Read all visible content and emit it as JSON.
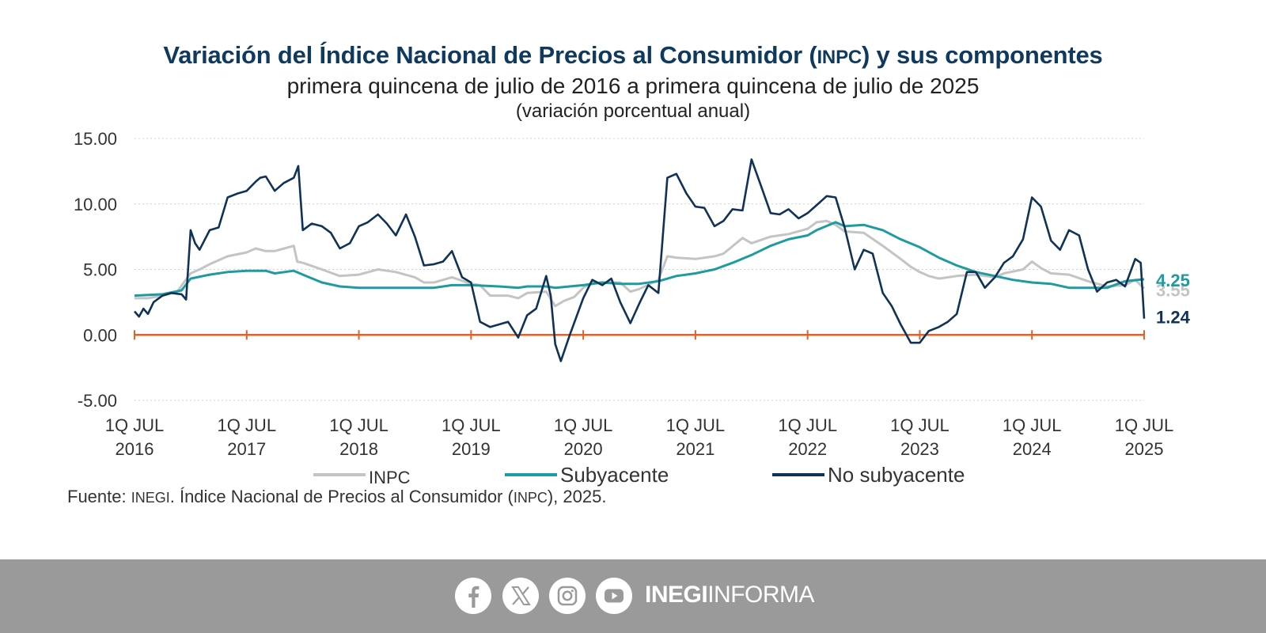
{
  "header": {
    "title_pre": "Variación del Índice Nacional de Precios al Consumidor (",
    "title_abbr": "INPC",
    "title_post": ") y sus componentes",
    "subtitle": "primera quincena de julio de 2016 a primera quincena de julio de 2025",
    "units": "(variación porcentual anual)"
  },
  "source": {
    "pre": "Fuente: ",
    "org": "INEGI",
    "mid": ". Índice Nacional de Precios al Consumidor (",
    "abbr": "INPC",
    "post": "), 2025."
  },
  "footer": {
    "icons": [
      "facebook-icon",
      "x-icon",
      "instagram-icon",
      "youtube-icon"
    ],
    "brand_bold": "INEGI",
    "brand_light": "INFORMA",
    "background": "#9a9a9a"
  },
  "chart_data": {
    "type": "line",
    "ylim": [
      -5,
      15
    ],
    "yticks": [
      "15.00",
      "10.00",
      "5.00",
      "0.00",
      "-5.00"
    ],
    "ytick_values": [
      15,
      10,
      5,
      0,
      -5
    ],
    "xticks": [
      {
        "line1": "1Q JUL",
        "line2": "2016",
        "x": 2016.5
      },
      {
        "line1": "1Q JUL",
        "line2": "2017",
        "x": 2017.5
      },
      {
        "line1": "1Q JUL",
        "line2": "2018",
        "x": 2018.5
      },
      {
        "line1": "1Q JUL",
        "line2": "2019",
        "x": 2019.5
      },
      {
        "line1": "1Q JUL",
        "line2": "2020",
        "x": 2020.5
      },
      {
        "line1": "1Q JUL",
        "line2": "2021",
        "x": 2021.5
      },
      {
        "line1": "1Q JUL",
        "line2": "2022",
        "x": 2022.5
      },
      {
        "line1": "1Q JUL",
        "line2": "2023",
        "x": 2023.5
      },
      {
        "line1": "1Q JUL",
        "line2": "2024",
        "x": 2024.5
      },
      {
        "line1": "1Q JUL",
        "line2": "2025",
        "x": 2025.5
      }
    ],
    "xlim": [
      2016.5,
      2025.5
    ],
    "zero_line_color": "#e0622a",
    "grid": true,
    "series": [
      {
        "name": "INPC",
        "color": "#c4c4c4",
        "end_label": "3.55",
        "points": [
          [
            2016.5,
            2.8
          ],
          [
            2016.62,
            2.8
          ],
          [
            2016.75,
            3.0
          ],
          [
            2016.88,
            3.3
          ],
          [
            2017.0,
            4.7
          ],
          [
            2017.08,
            5.0
          ],
          [
            2017.17,
            5.4
          ],
          [
            2017.33,
            6.0
          ],
          [
            2017.5,
            6.3
          ],
          [
            2017.58,
            6.6
          ],
          [
            2017.67,
            6.4
          ],
          [
            2017.75,
            6.4
          ],
          [
            2017.92,
            6.8
          ],
          [
            2017.95,
            5.6
          ],
          [
            2018.0,
            5.5
          ],
          [
            2018.17,
            5.0
          ],
          [
            2018.33,
            4.5
          ],
          [
            2018.5,
            4.6
          ],
          [
            2018.67,
            5.0
          ],
          [
            2018.75,
            4.9
          ],
          [
            2018.83,
            4.8
          ],
          [
            2019.0,
            4.4
          ],
          [
            2019.08,
            4.0
          ],
          [
            2019.17,
            4.0
          ],
          [
            2019.33,
            4.4
          ],
          [
            2019.5,
            3.9
          ],
          [
            2019.58,
            3.8
          ],
          [
            2019.67,
            3.0
          ],
          [
            2019.83,
            3.0
          ],
          [
            2019.92,
            2.8
          ],
          [
            2020.0,
            3.2
          ],
          [
            2020.17,
            3.3
          ],
          [
            2020.25,
            2.2
          ],
          [
            2020.33,
            2.6
          ],
          [
            2020.42,
            2.9
          ],
          [
            2020.5,
            3.6
          ],
          [
            2020.58,
            4.0
          ],
          [
            2020.67,
            4.0
          ],
          [
            2020.83,
            4.0
          ],
          [
            2020.92,
            3.3
          ],
          [
            2021.0,
            3.5
          ],
          [
            2021.17,
            4.2
          ],
          [
            2021.25,
            6.0
          ],
          [
            2021.33,
            5.9
          ],
          [
            2021.5,
            5.8
          ],
          [
            2021.67,
            6.0
          ],
          [
            2021.75,
            6.2
          ],
          [
            2021.92,
            7.4
          ],
          [
            2022.0,
            7.0
          ],
          [
            2022.17,
            7.5
          ],
          [
            2022.33,
            7.7
          ],
          [
            2022.5,
            8.1
          ],
          [
            2022.58,
            8.6
          ],
          [
            2022.67,
            8.7
          ],
          [
            2022.75,
            8.4
          ],
          [
            2022.83,
            7.9
          ],
          [
            2023.0,
            7.8
          ],
          [
            2023.17,
            6.8
          ],
          [
            2023.25,
            6.3
          ],
          [
            2023.33,
            5.8
          ],
          [
            2023.42,
            5.2
          ],
          [
            2023.5,
            4.8
          ],
          [
            2023.58,
            4.5
          ],
          [
            2023.67,
            4.3
          ],
          [
            2023.83,
            4.5
          ],
          [
            2024.0,
            4.6
          ],
          [
            2024.17,
            4.4
          ],
          [
            2024.25,
            4.7
          ],
          [
            2024.42,
            5.0
          ],
          [
            2024.5,
            5.6
          ],
          [
            2024.58,
            5.1
          ],
          [
            2024.67,
            4.7
          ],
          [
            2024.83,
            4.6
          ],
          [
            2025.0,
            4.1
          ],
          [
            2025.17,
            3.7
          ],
          [
            2025.33,
            3.8
          ],
          [
            2025.42,
            4.2
          ],
          [
            2025.5,
            3.55
          ]
        ]
      },
      {
        "name": "Subyacente",
        "color": "#1e9ba0",
        "end_label": "4.25",
        "points": [
          [
            2016.5,
            3.0
          ],
          [
            2016.75,
            3.1
          ],
          [
            2016.92,
            3.4
          ],
          [
            2017.0,
            4.3
          ],
          [
            2017.17,
            4.6
          ],
          [
            2017.33,
            4.8
          ],
          [
            2017.5,
            4.9
          ],
          [
            2017.67,
            4.9
          ],
          [
            2017.75,
            4.7
          ],
          [
            2017.92,
            4.9
          ],
          [
            2018.0,
            4.6
          ],
          [
            2018.17,
            4.0
          ],
          [
            2018.33,
            3.7
          ],
          [
            2018.5,
            3.6
          ],
          [
            2018.75,
            3.6
          ],
          [
            2019.0,
            3.6
          ],
          [
            2019.17,
            3.6
          ],
          [
            2019.33,
            3.8
          ],
          [
            2019.5,
            3.8
          ],
          [
            2019.75,
            3.7
          ],
          [
            2019.92,
            3.6
          ],
          [
            2020.0,
            3.7
          ],
          [
            2020.17,
            3.7
          ],
          [
            2020.25,
            3.6
          ],
          [
            2020.5,
            3.8
          ],
          [
            2020.67,
            4.0
          ],
          [
            2020.83,
            3.9
          ],
          [
            2021.0,
            3.9
          ],
          [
            2021.17,
            4.1
          ],
          [
            2021.33,
            4.5
          ],
          [
            2021.5,
            4.7
          ],
          [
            2021.67,
            5.0
          ],
          [
            2021.83,
            5.5
          ],
          [
            2022.0,
            6.1
          ],
          [
            2022.17,
            6.8
          ],
          [
            2022.33,
            7.3
          ],
          [
            2022.5,
            7.6
          ],
          [
            2022.58,
            8.0
          ],
          [
            2022.75,
            8.6
          ],
          [
            2022.83,
            8.3
          ],
          [
            2023.0,
            8.4
          ],
          [
            2023.17,
            8.0
          ],
          [
            2023.33,
            7.3
          ],
          [
            2023.5,
            6.7
          ],
          [
            2023.67,
            5.9
          ],
          [
            2023.83,
            5.3
          ],
          [
            2024.0,
            4.8
          ],
          [
            2024.17,
            4.5
          ],
          [
            2024.33,
            4.2
          ],
          [
            2024.5,
            4.0
          ],
          [
            2024.67,
            3.9
          ],
          [
            2024.83,
            3.6
          ],
          [
            2025.0,
            3.6
          ],
          [
            2025.17,
            3.6
          ],
          [
            2025.33,
            4.1
          ],
          [
            2025.5,
            4.25
          ]
        ]
      },
      {
        "name": "No subyacente",
        "color": "#0f3256",
        "end_label": "1.24",
        "points": [
          [
            2016.5,
            1.8
          ],
          [
            2016.54,
            1.4
          ],
          [
            2016.58,
            2.0
          ],
          [
            2016.62,
            1.6
          ],
          [
            2016.67,
            2.5
          ],
          [
            2016.75,
            3.0
          ],
          [
            2016.83,
            3.2
          ],
          [
            2016.92,
            3.1
          ],
          [
            2016.96,
            2.7
          ],
          [
            2017.0,
            8.0
          ],
          [
            2017.04,
            7.0
          ],
          [
            2017.08,
            6.5
          ],
          [
            2017.17,
            8.0
          ],
          [
            2017.25,
            8.2
          ],
          [
            2017.33,
            10.5
          ],
          [
            2017.42,
            10.8
          ],
          [
            2017.5,
            11.0
          ],
          [
            2017.58,
            11.7
          ],
          [
            2017.62,
            12.0
          ],
          [
            2017.67,
            12.1
          ],
          [
            2017.75,
            11.0
          ],
          [
            2017.83,
            11.6
          ],
          [
            2017.92,
            12.0
          ],
          [
            2017.96,
            12.9
          ],
          [
            2018.0,
            8.0
          ],
          [
            2018.08,
            8.5
          ],
          [
            2018.17,
            8.3
          ],
          [
            2018.25,
            7.8
          ],
          [
            2018.33,
            6.6
          ],
          [
            2018.42,
            7.0
          ],
          [
            2018.5,
            8.3
          ],
          [
            2018.58,
            8.6
          ],
          [
            2018.67,
            9.2
          ],
          [
            2018.75,
            8.5
          ],
          [
            2018.83,
            7.6
          ],
          [
            2018.92,
            9.2
          ],
          [
            2019.0,
            7.5
          ],
          [
            2019.08,
            5.3
          ],
          [
            2019.17,
            5.4
          ],
          [
            2019.25,
            5.6
          ],
          [
            2019.33,
            6.4
          ],
          [
            2019.42,
            4.4
          ],
          [
            2019.5,
            4.0
          ],
          [
            2019.58,
            1.0
          ],
          [
            2019.67,
            0.6
          ],
          [
            2019.75,
            0.8
          ],
          [
            2019.83,
            1.0
          ],
          [
            2019.92,
            -0.2
          ],
          [
            2020.0,
            1.5
          ],
          [
            2020.08,
            2.0
          ],
          [
            2020.17,
            4.5
          ],
          [
            2020.21,
            3.0
          ],
          [
            2020.25,
            -0.7
          ],
          [
            2020.3,
            -2.0
          ],
          [
            2020.38,
            0.0
          ],
          [
            2020.5,
            2.8
          ],
          [
            2020.58,
            4.2
          ],
          [
            2020.67,
            3.8
          ],
          [
            2020.75,
            4.3
          ],
          [
            2020.83,
            2.5
          ],
          [
            2020.92,
            0.9
          ],
          [
            2021.0,
            2.4
          ],
          [
            2021.08,
            3.8
          ],
          [
            2021.17,
            3.2
          ],
          [
            2021.25,
            12.0
          ],
          [
            2021.33,
            12.3
          ],
          [
            2021.42,
            10.8
          ],
          [
            2021.5,
            9.8
          ],
          [
            2021.58,
            9.7
          ],
          [
            2021.67,
            8.3
          ],
          [
            2021.75,
            8.7
          ],
          [
            2021.83,
            9.6
          ],
          [
            2021.92,
            9.5
          ],
          [
            2022.0,
            13.4
          ],
          [
            2022.08,
            11.5
          ],
          [
            2022.17,
            9.3
          ],
          [
            2022.25,
            9.2
          ],
          [
            2022.33,
            9.6
          ],
          [
            2022.42,
            8.9
          ],
          [
            2022.5,
            9.3
          ],
          [
            2022.58,
            9.9
          ],
          [
            2022.67,
            10.6
          ],
          [
            2022.75,
            10.5
          ],
          [
            2022.83,
            8.2
          ],
          [
            2022.92,
            5.0
          ],
          [
            2023.0,
            6.5
          ],
          [
            2023.08,
            6.2
          ],
          [
            2023.17,
            3.2
          ],
          [
            2023.25,
            2.2
          ],
          [
            2023.33,
            0.8
          ],
          [
            2023.42,
            -0.6
          ],
          [
            2023.5,
            -0.6
          ],
          [
            2023.58,
            0.3
          ],
          [
            2023.67,
            0.6
          ],
          [
            2023.75,
            1.0
          ],
          [
            2023.83,
            1.6
          ],
          [
            2023.92,
            4.8
          ],
          [
            2024.0,
            4.8
          ],
          [
            2024.08,
            3.6
          ],
          [
            2024.17,
            4.4
          ],
          [
            2024.25,
            5.5
          ],
          [
            2024.33,
            6.0
          ],
          [
            2024.42,
            7.3
          ],
          [
            2024.5,
            10.5
          ],
          [
            2024.58,
            9.8
          ],
          [
            2024.67,
            7.2
          ],
          [
            2024.75,
            6.5
          ],
          [
            2024.83,
            8.0
          ],
          [
            2024.92,
            7.6
          ],
          [
            2025.0,
            5.0
          ],
          [
            2025.08,
            3.3
          ],
          [
            2025.17,
            4.0
          ],
          [
            2025.25,
            4.2
          ],
          [
            2025.33,
            3.7
          ],
          [
            2025.42,
            5.8
          ],
          [
            2025.47,
            5.5
          ],
          [
            2025.5,
            1.24
          ]
        ]
      }
    ]
  }
}
